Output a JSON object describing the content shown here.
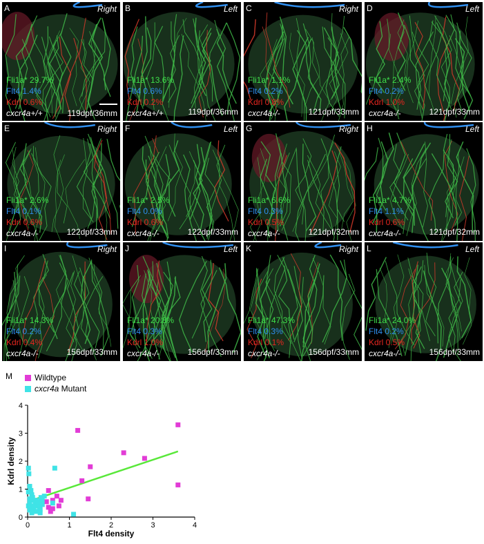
{
  "panels": [
    {
      "letter": "A",
      "side": "Right",
      "fli": "Fli1a* 29.7%",
      "flt": "Flt4 1.4%",
      "kdr": "Kdrl 0.6%",
      "geno": "cxcr4a+/+",
      "age": "119dpf/36mm",
      "scalebar": true
    },
    {
      "letter": "B",
      "side": "Left",
      "fli": "Fli1a* 13.6%",
      "flt": "Flt4 0.6%",
      "kdr": "Kdrl 0.2%",
      "geno": "cxcr4a+/+",
      "age": "119dpf/36mm",
      "scalebar": false
    },
    {
      "letter": "C",
      "side": "Right",
      "fli": "Fli1a* 1.1%",
      "flt": "Flt4 0.2%",
      "kdr": "Kdrl 0.8%",
      "geno": "cxcr4a-/-",
      "age": "121dpf/33mm",
      "scalebar": false
    },
    {
      "letter": "D",
      "side": "Left",
      "fli": "Fli1a* 2.4%",
      "flt": "Flt4 0.2%",
      "kdr": "Kdrl 1.0%",
      "geno": "cxcr4a-/-",
      "age": "121dpf/33mm",
      "scalebar": false
    },
    {
      "letter": "E",
      "side": "Right",
      "fli": "Fli1a* 2.6%",
      "flt": "Flt4 0.1%",
      "kdr": "Kdrl 0.6%",
      "geno": "cxcr4a-/-",
      "age": "122dpf/33mm",
      "scalebar": false
    },
    {
      "letter": "F",
      "side": "Left",
      "fli": "Fli1a* 2.5%",
      "flt": "Flt4 0.0%",
      "kdr": "Kdrl 0.6%",
      "geno": "cxcr4a-/-",
      "age": "122dpf/33mm",
      "scalebar": false
    },
    {
      "letter": "G",
      "side": "Right",
      "fli": "Fli1a* 6.6%",
      "flt": "Flt4 0.3%",
      "kdr": "Kdrl 0.5%",
      "geno": "cxcr4a-/-",
      "age": "121dpf/32mm",
      "scalebar": false
    },
    {
      "letter": "H",
      "side": "Left",
      "fli": "Fli1a* 4.7%",
      "flt": "Flt4 1.1%",
      "kdr": "Kdrl 0.6%",
      "geno": "cxcr4a-/-",
      "age": "121dpf/32mm",
      "scalebar": false
    },
    {
      "letter": "I",
      "side": "Right",
      "fli": "Fli1a* 14.3%",
      "flt": "Flt4 0.2%",
      "kdr": "Kdrl 0.4%",
      "geno": "cxcr4a-/-",
      "age": "156dpf/33mm",
      "scalebar": false
    },
    {
      "letter": "J",
      "side": "Left",
      "fli": "Fli1a* 20.8%",
      "flt": "Flt4 0.3%",
      "kdr": "Kdrl 1.0%",
      "geno": "cxcr4a-/-",
      "age": "156dpf/33mm",
      "scalebar": false
    },
    {
      "letter": "K",
      "side": "Right",
      "fli": "Fli1a* 47.3%",
      "flt": "Flt4 0.3%",
      "kdr": "Kdrl 0.1%",
      "geno": "cxcr4a-/-",
      "age": "156dpf/33mm",
      "scalebar": false
    },
    {
      "letter": "L",
      "side": "Left",
      "fli": "Fli1a* 24.0%",
      "flt": "Flt4 0.2%",
      "kdr": "Kdrl 0.5%",
      "geno": "cxcr4a-/-",
      "age": "156dpf/33mm",
      "scalebar": false
    }
  ],
  "plot_panel": {
    "letter": "M",
    "legend": [
      {
        "name": "Wildtype",
        "color": "#e23cd6"
      },
      {
        "prefix_italic": "cxcr4a",
        "name": " Mutant",
        "color": "#3fe3e6"
      }
    ]
  },
  "colors": {
    "fli": "#3ee04a",
    "flt": "#2f8ff0",
    "kdr": "#e6261f",
    "wildtype": "#e23cd6",
    "mutant": "#3fe3e6",
    "fit": "#59e83a"
  },
  "chart_data": {
    "type": "scatter",
    "title": "",
    "xlabel": "Flt4 density",
    "ylabel": "Kdrl density",
    "xlim": [
      0,
      4
    ],
    "ylim": [
      0,
      4
    ],
    "xticks": [
      0,
      1,
      2,
      3,
      4
    ],
    "yticks": [
      0,
      1,
      2,
      3,
      4
    ],
    "grid": false,
    "legend_position": "top-left",
    "series": [
      {
        "name": "Wildtype",
        "marker": "square",
        "color": "#e23cd6",
        "x": [
          1.2,
          1.3,
          1.5,
          1.45,
          2.3,
          2.8,
          3.6,
          3.6,
          0.5,
          0.6,
          0.75,
          0.8,
          0.35,
          0.55,
          0.6,
          0.7,
          0.45,
          0.5
        ],
        "y": [
          3.1,
          1.3,
          1.8,
          0.65,
          2.3,
          2.1,
          3.3,
          1.15,
          0.95,
          0.3,
          0.4,
          0.6,
          0.45,
          0.2,
          0.6,
          0.75,
          0.55,
          0.35
        ]
      },
      {
        "name": "cxcr4a Mutant",
        "marker": "square",
        "color": "#3fe3e6",
        "x": [
          0.02,
          0.03,
          0.05,
          0.08,
          0.1,
          0.12,
          0.15,
          0.18,
          0.2,
          0.22,
          0.25,
          0.28,
          0.3,
          0.32,
          0.35,
          0.02,
          0.05,
          0.1,
          0.15,
          0.2,
          0.25,
          0.3,
          0.05,
          0.1,
          0.15,
          0.2,
          0.3,
          0.4,
          0.65,
          1.1,
          0.6,
          0.35,
          0.1,
          0.05,
          0.02
        ],
        "y": [
          1.75,
          1.55,
          1.1,
          0.95,
          0.8,
          0.7,
          0.6,
          0.55,
          0.5,
          0.45,
          0.4,
          0.35,
          0.3,
          0.7,
          0.6,
          0.9,
          0.5,
          0.4,
          0.3,
          0.6,
          0.55,
          0.25,
          0.25,
          0.3,
          0.35,
          0.2,
          0.15,
          0.75,
          1.75,
          0.1,
          0.5,
          0.45,
          0.15,
          0.65,
          0.4
        ]
      }
    ],
    "fit_line": {
      "x": [
        0,
        3.6
      ],
      "y": [
        0.55,
        2.35
      ]
    }
  }
}
